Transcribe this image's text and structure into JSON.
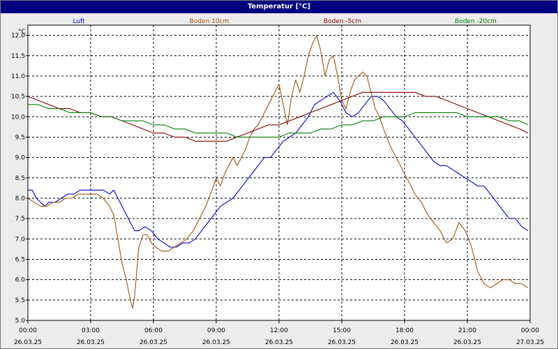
{
  "window": {
    "title": "Temperatur [°C]"
  },
  "chart_data": {
    "type": "line",
    "title": "Temperatur [°C]",
    "ylabel": "°C",
    "xlabel": "",
    "ylim": [
      5.0,
      12.25
    ],
    "y_ticks": [
      "5.0",
      "5.5",
      "6.0",
      "6.5",
      "7.0",
      "7.5",
      "8.0",
      "8.5",
      "9.0",
      "9.5",
      "10.0",
      "10.5",
      "11.0",
      "11.5",
      "12.0"
    ],
    "x_tick_times": [
      "00:00",
      "03:00",
      "06:00",
      "09:00",
      "12:00",
      "15:00",
      "18:00",
      "21:00",
      "00:00"
    ],
    "x_tick_dates": [
      "26.03.25",
      "26.03.25",
      "26.03.25",
      "26.03.25",
      "26.03.25",
      "26.03.25",
      "26.03.25",
      "26.03.25",
      "27.03.25"
    ],
    "x_range_hours": [
      0,
      24
    ],
    "grid": true,
    "legend_placement": "top",
    "series": [
      {
        "name": "Luft",
        "color": "#0000c8",
        "x": [
          0,
          0.2,
          0.4,
          0.6,
          0.8,
          1.0,
          1.3,
          1.6,
          1.9,
          2.2,
          2.5,
          2.8,
          3.0,
          3.3,
          3.6,
          3.9,
          4.1,
          4.3,
          4.5,
          4.7,
          4.9,
          5.1,
          5.3,
          5.6,
          5.9,
          6.2,
          6.5,
          6.8,
          7.1,
          7.4,
          7.7,
          8.0,
          8.3,
          8.6,
          8.9,
          9.2,
          9.5,
          9.8,
          10.1,
          10.4,
          10.7,
          11.0,
          11.3,
          11.6,
          11.9,
          12.2,
          12.5,
          12.8,
          13.1,
          13.4,
          13.7,
          14.0,
          14.3,
          14.6,
          14.9,
          15.2,
          15.5,
          15.8,
          16.1,
          16.4,
          16.7,
          17.0,
          17.3,
          17.6,
          17.9,
          18.2,
          18.5,
          18.8,
          19.1,
          19.4,
          19.7,
          20.0,
          20.3,
          20.6,
          20.9,
          21.2,
          21.5,
          21.8,
          22.1,
          22.4,
          22.7,
          23.0,
          23.3,
          23.6,
          23.9
        ],
        "y": [
          8.2,
          8.2,
          8.0,
          7.9,
          7.8,
          7.9,
          7.9,
          8.0,
          8.1,
          8.1,
          8.2,
          8.2,
          8.2,
          8.2,
          8.2,
          8.1,
          8.2,
          8.0,
          7.8,
          7.6,
          7.4,
          7.2,
          7.2,
          7.3,
          7.2,
          7.0,
          6.9,
          6.8,
          6.8,
          6.9,
          6.9,
          7.0,
          7.2,
          7.4,
          7.6,
          7.8,
          7.9,
          8.0,
          8.2,
          8.4,
          8.6,
          8.8,
          9.0,
          9.0,
          9.2,
          9.4,
          9.5,
          9.6,
          9.8,
          10.0,
          10.3,
          10.4,
          10.5,
          10.6,
          10.4,
          10.1,
          10.0,
          10.1,
          10.3,
          10.5,
          10.5,
          10.4,
          10.2,
          10.0,
          9.9,
          9.7,
          9.5,
          9.3,
          9.1,
          8.9,
          8.8,
          8.8,
          8.7,
          8.6,
          8.5,
          8.4,
          8.3,
          8.3,
          8.1,
          7.9,
          7.7,
          7.5,
          7.5,
          7.3,
          7.2
        ]
      },
      {
        "name": "Boden 10cm",
        "color": "#a0520a",
        "x": [
          0,
          0.3,
          0.6,
          0.9,
          1.2,
          1.5,
          1.8,
          2.1,
          2.4,
          2.7,
          3.0,
          3.3,
          3.6,
          3.9,
          4.1,
          4.3,
          4.5,
          4.7,
          4.9,
          5.0,
          5.1,
          5.2,
          5.3,
          5.5,
          5.7,
          5.9,
          6.1,
          6.4,
          6.7,
          7.0,
          7.3,
          7.6,
          7.9,
          8.2,
          8.5,
          8.8,
          9.0,
          9.2,
          9.4,
          9.6,
          9.8,
          10.0,
          10.2,
          10.4,
          10.6,
          10.8,
          11.0,
          11.2,
          11.4,
          11.6,
          11.8,
          12.0,
          12.2,
          12.4,
          12.6,
          12.8,
          13.0,
          13.2,
          13.4,
          13.6,
          13.8,
          14.0,
          14.2,
          14.4,
          14.6,
          14.8,
          15.0,
          15.2,
          15.4,
          15.6,
          15.8,
          16.0,
          16.2,
          16.4,
          16.6,
          16.8,
          17.0,
          17.3,
          17.6,
          17.9,
          18.2,
          18.5,
          18.8,
          19.1,
          19.4,
          19.7,
          20.0,
          20.3,
          20.6,
          20.9,
          21.2,
          21.5,
          21.8,
          22.1,
          22.4,
          22.7,
          23.0,
          23.3,
          23.6,
          23.9
        ],
        "y": [
          8.0,
          7.9,
          7.8,
          7.8,
          7.9,
          7.9,
          8.0,
          8.0,
          8.1,
          8.1,
          8.1,
          8.1,
          8.0,
          7.8,
          7.6,
          7.0,
          6.4,
          6.0,
          5.5,
          5.3,
          5.6,
          6.2,
          6.8,
          7.1,
          7.1,
          6.9,
          6.8,
          6.7,
          6.7,
          6.8,
          6.9,
          7.0,
          7.2,
          7.5,
          7.8,
          8.2,
          8.5,
          8.3,
          8.6,
          8.8,
          9.0,
          8.8,
          9.0,
          9.2,
          9.5,
          9.7,
          9.8,
          10.0,
          10.2,
          10.4,
          10.6,
          10.8,
          10.3,
          9.8,
          10.5,
          10.9,
          10.6,
          11.0,
          11.5,
          11.8,
          12.0,
          11.6,
          11.0,
          11.4,
          11.5,
          11.0,
          10.4,
          10.2,
          10.6,
          10.9,
          11.0,
          11.1,
          11.0,
          10.6,
          10.2,
          10.0,
          9.7,
          9.3,
          9.0,
          8.7,
          8.4,
          8.1,
          7.9,
          7.6,
          7.4,
          7.2,
          6.9,
          7.0,
          7.4,
          7.2,
          6.8,
          6.2,
          5.9,
          5.8,
          5.9,
          6.0,
          6.0,
          5.9,
          5.9,
          5.8
        ]
      },
      {
        "name": "Boden -5cm",
        "color": "#8b0000",
        "x": [
          0,
          0.5,
          1.0,
          1.5,
          2.0,
          2.5,
          3.0,
          3.5,
          4.0,
          4.5,
          5.0,
          5.5,
          6.0,
          6.5,
          7.0,
          7.5,
          8.0,
          8.5,
          9.0,
          9.5,
          10.0,
          10.5,
          11.0,
          11.5,
          12.0,
          12.5,
          13.0,
          13.5,
          14.0,
          14.5,
          15.0,
          15.5,
          16.0,
          16.5,
          17.0,
          17.5,
          18.0,
          18.5,
          19.0,
          19.5,
          20.0,
          20.5,
          21.0,
          21.5,
          22.0,
          22.5,
          23.0,
          23.5,
          23.9
        ],
        "y": [
          10.5,
          10.4,
          10.3,
          10.2,
          10.2,
          10.1,
          10.1,
          10.0,
          10.0,
          9.9,
          9.8,
          9.7,
          9.6,
          9.6,
          9.5,
          9.5,
          9.4,
          9.4,
          9.4,
          9.4,
          9.5,
          9.6,
          9.7,
          9.8,
          9.8,
          9.9,
          10.0,
          10.1,
          10.2,
          10.3,
          10.4,
          10.5,
          10.6,
          10.6,
          10.6,
          10.6,
          10.6,
          10.6,
          10.5,
          10.5,
          10.4,
          10.3,
          10.2,
          10.1,
          10.0,
          9.9,
          9.8,
          9.7,
          9.6
        ]
      },
      {
        "name": "Boden -20cm",
        "color": "#008000",
        "x": [
          0,
          0.5,
          1.0,
          1.5,
          2.0,
          2.5,
          3.0,
          3.5,
          4.0,
          4.5,
          5.0,
          5.5,
          6.0,
          6.5,
          7.0,
          7.5,
          8.0,
          8.5,
          9.0,
          9.5,
          10.0,
          10.5,
          11.0,
          11.5,
          12.0,
          12.5,
          13.0,
          13.5,
          14.0,
          14.5,
          15.0,
          15.5,
          16.0,
          16.5,
          17.0,
          17.5,
          18.0,
          18.5,
          19.0,
          19.5,
          20.0,
          20.5,
          21.0,
          21.5,
          22.0,
          22.5,
          23.0,
          23.5,
          23.9
        ],
        "y": [
          10.3,
          10.3,
          10.2,
          10.2,
          10.1,
          10.1,
          10.1,
          10.0,
          10.0,
          9.9,
          9.9,
          9.9,
          9.8,
          9.8,
          9.7,
          9.7,
          9.6,
          9.6,
          9.6,
          9.6,
          9.5,
          9.5,
          9.5,
          9.5,
          9.5,
          9.6,
          9.6,
          9.6,
          9.7,
          9.7,
          9.8,
          9.8,
          9.9,
          9.9,
          10.0,
          10.0,
          10.0,
          10.1,
          10.1,
          10.1,
          10.1,
          10.1,
          10.0,
          10.0,
          10.0,
          10.0,
          9.9,
          9.9,
          9.8
        ]
      }
    ]
  }
}
